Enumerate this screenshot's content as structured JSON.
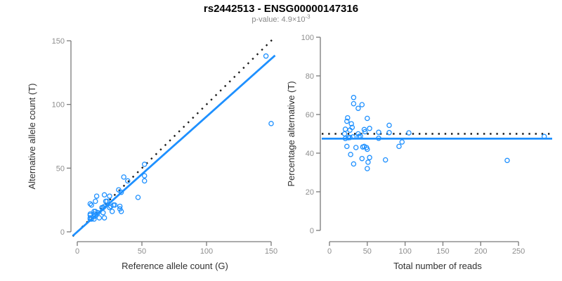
{
  "header": {
    "title": "rs2442513 - ENSG00000147316",
    "p_value_prefix": "p-value: 4.9×10",
    "p_value_exponent": "-3"
  },
  "colors": {
    "point_blue": "#1E90FF",
    "fit_line_blue": "#1E90FF",
    "identity_line_black": "#1a1a1a",
    "axis_gray": "#7a7a7a",
    "tick_label_gray": "#8e8e8e",
    "axis_title_dark": "#303030",
    "title_black": "#000000",
    "subtitle_gray": "#878787"
  },
  "chart_data": [
    {
      "type": "scatter",
      "panel": "left",
      "xlabel": "Reference allele count (G)",
      "ylabel": "Alternative allele count (T)",
      "xlim": [
        0,
        150
      ],
      "ylim": [
        0,
        150
      ],
      "xticks": [
        0,
        50,
        100,
        150
      ],
      "yticks": [
        0,
        50,
        100,
        150
      ],
      "grid": false,
      "marker": "open-circle",
      "points": [
        [
          10,
          22
        ],
        [
          11,
          21
        ],
        [
          15,
          28
        ],
        [
          14,
          24
        ],
        [
          10,
          14
        ],
        [
          21,
          29
        ],
        [
          10,
          13
        ],
        [
          13,
          16
        ],
        [
          10,
          11
        ],
        [
          10,
          10
        ],
        [
          13,
          14
        ],
        [
          19,
          19
        ],
        [
          21,
          20
        ],
        [
          25,
          28
        ],
        [
          32,
          33
        ],
        [
          36,
          43
        ],
        [
          39,
          40
        ],
        [
          34,
          31
        ],
        [
          20,
          19
        ],
        [
          14,
          13
        ],
        [
          13,
          12
        ],
        [
          16,
          15
        ],
        [
          11,
          10
        ],
        [
          13,
          10
        ],
        [
          14,
          16
        ],
        [
          22,
          24
        ],
        [
          23,
          24
        ],
        [
          26,
          20
        ],
        [
          25,
          19
        ],
        [
          28,
          21
        ],
        [
          29,
          21
        ],
        [
          20,
          15
        ],
        [
          17,
          11
        ],
        [
          27,
          16
        ],
        [
          33,
          20
        ],
        [
          33,
          18
        ],
        [
          21,
          11
        ],
        [
          47,
          27
        ],
        [
          34,
          16
        ],
        [
          150,
          85
        ],
        [
          146,
          138
        ],
        [
          52,
          53
        ],
        [
          52,
          40
        ],
        [
          52,
          44
        ]
      ],
      "lines": [
        {
          "name": "identity-line",
          "style": "dotted",
          "slope": 1,
          "intercept": 0
        },
        {
          "name": "fit-line",
          "style": "solid",
          "slope": 0.905,
          "intercept": 0
        }
      ]
    },
    {
      "type": "scatter",
      "panel": "right",
      "xlabel": "Total number of reads",
      "ylabel": "Percentage alternative (T)",
      "xlim": [
        0,
        290
      ],
      "ylim": [
        0,
        100
      ],
      "xticks": [
        0,
        50,
        100,
        150,
        200,
        250
      ],
      "yticks": [
        0,
        20,
        40,
        60,
        80,
        100
      ],
      "grid": false,
      "marker": "open-circle",
      "points": [
        [
          32,
          68.8
        ],
        [
          32,
          65.6
        ],
        [
          43,
          65.1
        ],
        [
          38,
          63.2
        ],
        [
          24,
          58.3
        ],
        [
          50,
          58.0
        ],
        [
          23,
          56.5
        ],
        [
          29,
          55.2
        ],
        [
          21,
          52.4
        ],
        [
          20,
          50.0
        ],
        [
          27,
          51.9
        ],
        [
          38,
          50.0
        ],
        [
          41,
          48.8
        ],
        [
          53,
          52.8
        ],
        [
          65,
          50.8
        ],
        [
          79,
          54.4
        ],
        [
          79,
          50.6
        ],
        [
          65,
          47.7
        ],
        [
          39,
          48.7
        ],
        [
          27,
          48.1
        ],
        [
          25,
          48.0
        ],
        [
          31,
          48.4
        ],
        [
          21,
          47.6
        ],
        [
          23,
          43.5
        ],
        [
          30,
          53.3
        ],
        [
          46,
          52.2
        ],
        [
          47,
          51.1
        ],
        [
          46,
          43.5
        ],
        [
          44,
          43.2
        ],
        [
          49,
          42.9
        ],
        [
          50,
          42.0
        ],
        [
          35,
          42.9
        ],
        [
          28,
          39.3
        ],
        [
          43,
          37.2
        ],
        [
          53,
          37.7
        ],
        [
          51,
          35.3
        ],
        [
          32,
          34.4
        ],
        [
          74,
          36.5
        ],
        [
          50,
          32.0
        ],
        [
          235,
          36.2
        ],
        [
          284,
          48.6
        ],
        [
          105,
          50.5
        ],
        [
          92,
          43.5
        ],
        [
          96,
          45.8
        ]
      ],
      "lines": [
        {
          "name": "expected-50pct-line",
          "style": "dotted",
          "y": 50
        },
        {
          "name": "fit-line",
          "style": "solid",
          "y": 47.5
        }
      ]
    }
  ]
}
